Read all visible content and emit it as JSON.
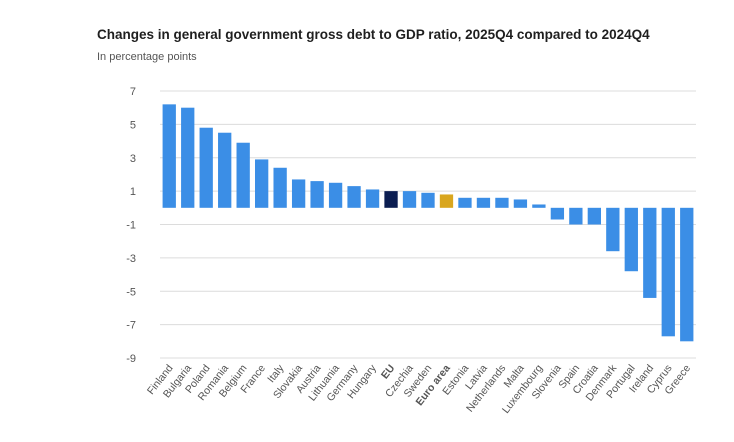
{
  "chart_data": {
    "type": "bar",
    "title": "Changes in general government gross debt to GDP ratio, 2025Q4 compared to 2024Q4",
    "subtitle": "In percentage points",
    "xlabel": "",
    "ylabel": "",
    "ylim": [
      -9,
      7
    ],
    "yticks": [
      7,
      5,
      3,
      1,
      -1,
      -3,
      -5,
      -7,
      -9
    ],
    "grid": true,
    "legend": "none",
    "categories": [
      "Finland",
      "Bulgaria",
      "Poland",
      "Romania",
      "Belgium",
      "France",
      "Italy",
      "Slovakia",
      "Austria",
      "Lithuania",
      "Germany",
      "Hungary",
      "EU",
      "Czechia",
      "Sweden",
      "Euro area",
      "Estonia",
      "Latvia",
      "Netherlands",
      "Malta",
      "Luxembourg",
      "Slovenia",
      "Spain",
      "Croatia",
      "Denmark",
      "Portugal",
      "Ireland",
      "Cyprus",
      "Greece"
    ],
    "values": [
      6.2,
      6.0,
      4.8,
      4.5,
      3.9,
      2.9,
      2.4,
      1.7,
      1.6,
      1.5,
      1.3,
      1.1,
      1.0,
      1.0,
      0.9,
      0.8,
      0.6,
      0.6,
      0.6,
      0.5,
      0.2,
      -0.7,
      -1.0,
      -1.0,
      -2.6,
      -3.8,
      -5.4,
      -7.7,
      -8.0
    ],
    "highlight": {
      "EU": "#0b1d51",
      "Euro area": "#d9a61e"
    },
    "bold_labels": [
      "EU",
      "Euro area"
    ],
    "colors": {
      "bar": "#3b8ee6",
      "grid": "#dcdcdc",
      "axis_text": "#555555"
    }
  }
}
